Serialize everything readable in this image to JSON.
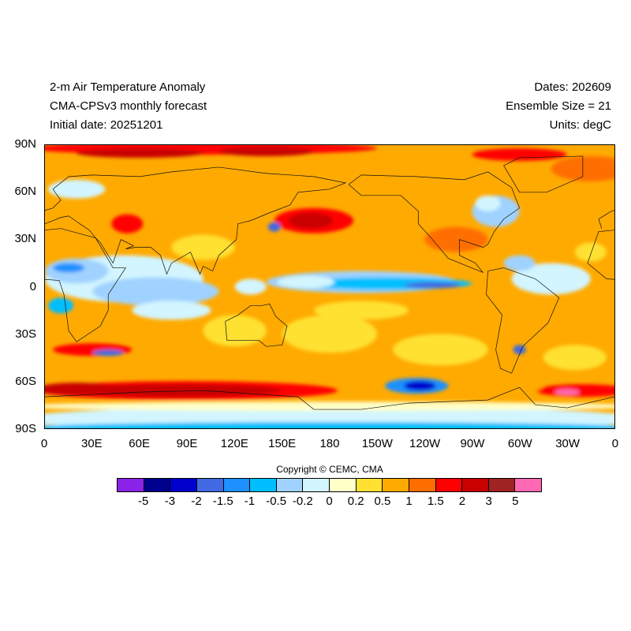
{
  "title": {
    "left": [
      "2-m Air Temperature Anomaly",
      "CMA-CPSv3 monthly forecast",
      "Initial date: 20251201"
    ],
    "right": [
      "Dates: 202609",
      "Ensemble Size = 21",
      "Units: degC"
    ]
  },
  "axes": {
    "y_labels": [
      "90N",
      "60N",
      "30N",
      "0",
      "30S",
      "60S",
      "90S"
    ],
    "x_labels": [
      "0",
      "30E",
      "60E",
      "90E",
      "120E",
      "150E",
      "180",
      "150W",
      "120W",
      "90W",
      "60W",
      "30W",
      "0"
    ]
  },
  "copyright": "Copyright © CEMC, CMA",
  "colorbar": {
    "colors": [
      "#8a22e8",
      "#00008f",
      "#0000cd",
      "#4169e1",
      "#1e90ff",
      "#00bfff",
      "#a0d2ff",
      "#d2f5ff",
      "#ffffc8",
      "#ffe132",
      "#ffaa00",
      "#ff6e00",
      "#ff0000",
      "#c80000",
      "#a02323",
      "#ff69b4"
    ],
    "labels": [
      "-5",
      "-3",
      "-2",
      "-1.5",
      "-1",
      "-0.5",
      "-0.2",
      "0",
      "0.2",
      "0.5",
      "1",
      "1.5",
      "2",
      "3",
      "5"
    ]
  }
}
